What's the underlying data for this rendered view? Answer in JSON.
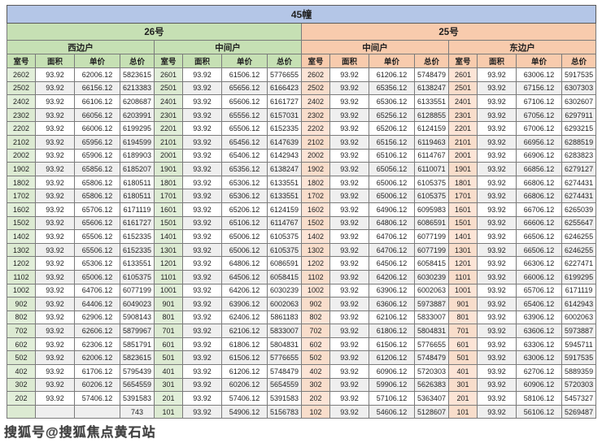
{
  "colors": {
    "title_bg": "#b4c6e7",
    "unit26_bg": "#c6e0b4",
    "unit25_bg": "#f8cbad",
    "room26_bg": "#e2efda",
    "room25_bg": "#fce4d6",
    "stripe_bg": "#efefef",
    "grid_line": "#7b7b7b"
  },
  "watermark": {
    "text": "搜狐号@搜狐焦点黄石站"
  },
  "chart_data": {
    "type": "table",
    "title": "45幢",
    "units": [
      {
        "name": "26号",
        "households": [
          {
            "name": "西边户"
          },
          {
            "name": "中间户"
          }
        ]
      },
      {
        "name": "25号",
        "households": [
          {
            "name": "中间户"
          },
          {
            "name": "东边户"
          }
        ]
      }
    ],
    "columns": [
      "室号",
      "面积",
      "单价",
      "总价"
    ],
    "rows": [
      [
        [
          "2602",
          "93.92",
          "62006.12",
          "5823615"
        ],
        [
          "2601",
          "93.92",
          "61506.12",
          "5776655"
        ],
        [
          "2602",
          "93.92",
          "61206.12",
          "5748479"
        ],
        [
          "2601",
          "93.92",
          "63006.12",
          "5917535"
        ]
      ],
      [
        [
          "2502",
          "93.92",
          "66156.12",
          "6213383"
        ],
        [
          "2501",
          "93.92",
          "65656.12",
          "6166423"
        ],
        [
          "2502",
          "93.92",
          "65356.12",
          "6138247"
        ],
        [
          "2501",
          "93.92",
          "67156.12",
          "6307303"
        ]
      ],
      [
        [
          "2402",
          "93.92",
          "66106.12",
          "6208687"
        ],
        [
          "2401",
          "93.92",
          "65606.12",
          "6161727"
        ],
        [
          "2402",
          "93.92",
          "65306.12",
          "6133551"
        ],
        [
          "2401",
          "93.92",
          "67106.12",
          "6302607"
        ]
      ],
      [
        [
          "2302",
          "93.92",
          "66056.12",
          "6203991"
        ],
        [
          "2301",
          "93.92",
          "65556.12",
          "6157031"
        ],
        [
          "2302",
          "93.92",
          "65256.12",
          "6128855"
        ],
        [
          "2301",
          "93.92",
          "67056.12",
          "6297911"
        ]
      ],
      [
        [
          "2202",
          "93.92",
          "66006.12",
          "6199295"
        ],
        [
          "2201",
          "93.92",
          "65506.12",
          "6152335"
        ],
        [
          "2202",
          "93.92",
          "65206.12",
          "6124159"
        ],
        [
          "2201",
          "93.92",
          "67006.12",
          "6293215"
        ]
      ],
      [
        [
          "2102",
          "93.92",
          "65956.12",
          "6194599"
        ],
        [
          "2101",
          "93.92",
          "65456.12",
          "6147639"
        ],
        [
          "2102",
          "93.92",
          "65156.12",
          "6119463"
        ],
        [
          "2101",
          "93.92",
          "66956.12",
          "6288519"
        ]
      ],
      [
        [
          "2002",
          "93.92",
          "65906.12",
          "6189903"
        ],
        [
          "2001",
          "93.92",
          "65406.12",
          "6142943"
        ],
        [
          "2002",
          "93.92",
          "65106.12",
          "6114767"
        ],
        [
          "2001",
          "93.92",
          "66906.12",
          "6283823"
        ]
      ],
      [
        [
          "1902",
          "93.92",
          "65856.12",
          "6185207"
        ],
        [
          "1901",
          "93.92",
          "65356.12",
          "6138247"
        ],
        [
          "1902",
          "93.92",
          "65056.12",
          "6110071"
        ],
        [
          "1901",
          "93.92",
          "66856.12",
          "6279127"
        ]
      ],
      [
        [
          "1802",
          "93.92",
          "65806.12",
          "6180511"
        ],
        [
          "1801",
          "93.92",
          "65306.12",
          "6133551"
        ],
        [
          "1802",
          "93.92",
          "65006.12",
          "6105375"
        ],
        [
          "1801",
          "93.92",
          "66806.12",
          "6274431"
        ]
      ],
      [
        [
          "1702",
          "93.92",
          "65806.12",
          "6180511"
        ],
        [
          "1701",
          "93.92",
          "65306.12",
          "6133551"
        ],
        [
          "1702",
          "93.92",
          "65006.12",
          "6105375"
        ],
        [
          "1701",
          "93.92",
          "66806.12",
          "6274431"
        ]
      ],
      [
        [
          "1602",
          "93.92",
          "65706.12",
          "6171119"
        ],
        [
          "1601",
          "93.92",
          "65206.12",
          "6124159"
        ],
        [
          "1602",
          "93.92",
          "64906.12",
          "6095983"
        ],
        [
          "1601",
          "93.92",
          "66706.12",
          "6265039"
        ]
      ],
      [
        [
          "1502",
          "93.92",
          "65606.12",
          "6161727"
        ],
        [
          "1501",
          "93.92",
          "65106.12",
          "6114767"
        ],
        [
          "1502",
          "93.92",
          "64806.12",
          "6086591"
        ],
        [
          "1501",
          "93.92",
          "66606.12",
          "6255647"
        ]
      ],
      [
        [
          "1402",
          "93.92",
          "65506.12",
          "6152335"
        ],
        [
          "1401",
          "93.92",
          "65006.12",
          "6105375"
        ],
        [
          "1402",
          "93.92",
          "64706.12",
          "6077199"
        ],
        [
          "1401",
          "93.92",
          "66506.12",
          "6246255"
        ]
      ],
      [
        [
          "1302",
          "93.92",
          "65506.12",
          "6152335"
        ],
        [
          "1301",
          "93.92",
          "65006.12",
          "6105375"
        ],
        [
          "1302",
          "93.92",
          "64706.12",
          "6077199"
        ],
        [
          "1301",
          "93.92",
          "66506.12",
          "6246255"
        ]
      ],
      [
        [
          "1202",
          "93.92",
          "65306.12",
          "6133551"
        ],
        [
          "1201",
          "93.92",
          "64806.12",
          "6086591"
        ],
        [
          "1202",
          "93.92",
          "64506.12",
          "6058415"
        ],
        [
          "1201",
          "93.92",
          "66306.12",
          "6227471"
        ]
      ],
      [
        [
          "1102",
          "93.92",
          "65006.12",
          "6105375"
        ],
        [
          "1101",
          "93.92",
          "64506.12",
          "6058415"
        ],
        [
          "1102",
          "93.92",
          "64206.12",
          "6030239"
        ],
        [
          "1101",
          "93.92",
          "66006.12",
          "6199295"
        ]
      ],
      [
        [
          "1002",
          "93.92",
          "64706.12",
          "6077199"
        ],
        [
          "1001",
          "93.92",
          "64206.12",
          "6030239"
        ],
        [
          "1002",
          "93.92",
          "63906.12",
          "6002063"
        ],
        [
          "1001",
          "93.92",
          "65706.12",
          "6171119"
        ]
      ],
      [
        [
          "902",
          "93.92",
          "64406.12",
          "6049023"
        ],
        [
          "901",
          "93.92",
          "63906.12",
          "6002063"
        ],
        [
          "902",
          "93.92",
          "63606.12",
          "5973887"
        ],
        [
          "901",
          "93.92",
          "65406.12",
          "6142943"
        ]
      ],
      [
        [
          "802",
          "93.92",
          "62906.12",
          "5908143"
        ],
        [
          "801",
          "93.92",
          "62406.12",
          "5861183"
        ],
        [
          "802",
          "93.92",
          "62106.12",
          "5833007"
        ],
        [
          "801",
          "93.92",
          "63906.12",
          "6002063"
        ]
      ],
      [
        [
          "702",
          "93.92",
          "62606.12",
          "5879967"
        ],
        [
          "701",
          "93.92",
          "62106.12",
          "5833007"
        ],
        [
          "702",
          "93.92",
          "61806.12",
          "5804831"
        ],
        [
          "701",
          "93.92",
          "63606.12",
          "5973887"
        ]
      ],
      [
        [
          "602",
          "93.92",
          "62306.12",
          "5851791"
        ],
        [
          "601",
          "93.92",
          "61806.12",
          "5804831"
        ],
        [
          "602",
          "93.92",
          "61506.12",
          "5776655"
        ],
        [
          "601",
          "93.92",
          "63306.12",
          "5945711"
        ]
      ],
      [
        [
          "502",
          "93.92",
          "62006.12",
          "5823615"
        ],
        [
          "501",
          "93.92",
          "61506.12",
          "5776655"
        ],
        [
          "502",
          "93.92",
          "61206.12",
          "5748479"
        ],
        [
          "501",
          "93.92",
          "63006.12",
          "5917535"
        ]
      ],
      [
        [
          "402",
          "93.92",
          "61706.12",
          "5795439"
        ],
        [
          "401",
          "93.92",
          "61206.12",
          "5748479"
        ],
        [
          "402",
          "93.92",
          "60906.12",
          "5720303"
        ],
        [
          "401",
          "93.92",
          "62706.12",
          "5889359"
        ]
      ],
      [
        [
          "302",
          "93.92",
          "60206.12",
          "5654559"
        ],
        [
          "301",
          "93.92",
          "60206.12",
          "5654559"
        ],
        [
          "302",
          "93.92",
          "59906.12",
          "5626383"
        ],
        [
          "301",
          "93.92",
          "60906.12",
          "5720303"
        ]
      ],
      [
        [
          "202",
          "93.92",
          "57406.12",
          "5391583"
        ],
        [
          "201",
          "93.92",
          "57406.12",
          "5391583"
        ],
        [
          "202",
          "93.92",
          "57106.12",
          "5363407"
        ],
        [
          "201",
          "93.92",
          "58106.12",
          "5457327"
        ]
      ],
      [
        [
          "",
          "",
          "",
          "743"
        ],
        [
          "101",
          "93.92",
          "54906.12",
          "5156783"
        ],
        [
          "102",
          "93.92",
          "54606.12",
          "5128607"
        ],
        [
          "101",
          "93.92",
          "56106.12",
          "5269487"
        ]
      ]
    ]
  }
}
